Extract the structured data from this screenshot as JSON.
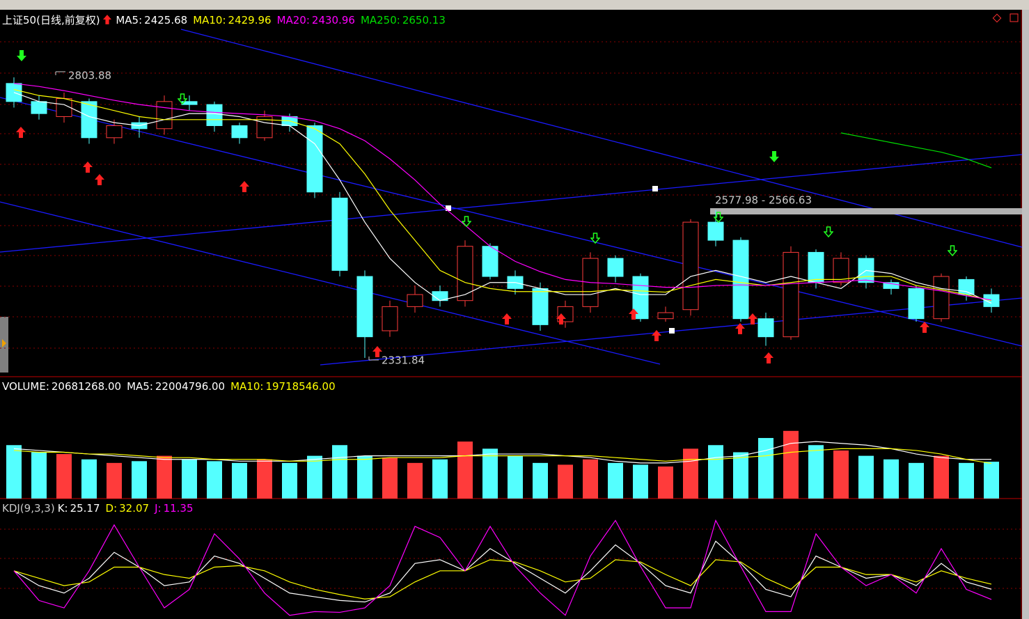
{
  "chart_data": [
    {
      "type": "candlestick",
      "title": "上证50(日线,前复权)",
      "ylim": [
        2305,
        2911
      ],
      "grid": true,
      "up_color": "#ff3b3b",
      "down_color": "#54ffff",
      "open": [
        2790,
        2760,
        2735,
        2760,
        2700,
        2725,
        2715,
        2760,
        2755,
        2720,
        2700,
        2735,
        2720,
        2600,
        2470,
        2380,
        2420,
        2445,
        2430,
        2520,
        2470,
        2450,
        2395,
        2420,
        2500,
        2470,
        2400,
        2415,
        2560,
        2530,
        2400,
        2370,
        2510,
        2460,
        2500,
        2460,
        2450,
        2400,
        2465,
        2440
      ],
      "high": [
        2800,
        2770,
        2775,
        2765,
        2730,
        2735,
        2770,
        2770,
        2760,
        2725,
        2745,
        2740,
        2725,
        2610,
        2480,
        2430,
        2455,
        2455,
        2530,
        2525,
        2480,
        2460,
        2430,
        2510,
        2505,
        2475,
        2420,
        2565,
        2580,
        2535,
        2410,
        2520,
        2515,
        2510,
        2505,
        2465,
        2455,
        2475,
        2470,
        2450
      ],
      "low": [
        2750,
        2730,
        2725,
        2690,
        2690,
        2700,
        2705,
        2745,
        2710,
        2690,
        2695,
        2710,
        2600,
        2470,
        2335,
        2370,
        2410,
        2420,
        2420,
        2465,
        2440,
        2380,
        2385,
        2410,
        2460,
        2395,
        2395,
        2405,
        2520,
        2395,
        2355,
        2365,
        2450,
        2455,
        2450,
        2440,
        2395,
        2395,
        2430,
        2410
      ],
      "close": [
        2760,
        2740,
        2765,
        2700,
        2720,
        2715,
        2760,
        2755,
        2720,
        2700,
        2735,
        2720,
        2610,
        2480,
        2370,
        2420,
        2440,
        2430,
        2520,
        2470,
        2450,
        2390,
        2420,
        2500,
        2470,
        2400,
        2410,
        2560,
        2530,
        2400,
        2370,
        2510,
        2460,
        2500,
        2460,
        2450,
        2400,
        2470,
        2440,
        2420
      ],
      "series": [
        {
          "name": "MA5:",
          "color": "#ffffff",
          "values": [
            2775,
            2760,
            2755,
            2735,
            2725,
            2720,
            2730,
            2740,
            2740,
            2735,
            2725,
            2720,
            2690,
            2630,
            2560,
            2500,
            2460,
            2430,
            2440,
            2460,
            2460,
            2450,
            2440,
            2440,
            2450,
            2440,
            2440,
            2470,
            2480,
            2470,
            2460,
            2470,
            2460,
            2450,
            2480,
            2475,
            2460,
            2450,
            2445,
            2425.68
          ]
        },
        {
          "name": "MA10:",
          "color": "#ffff00",
          "values": [
            2780,
            2770,
            2765,
            2755,
            2745,
            2735,
            2730,
            2730,
            2730,
            2730,
            2730,
            2728,
            2715,
            2690,
            2640,
            2580,
            2530,
            2480,
            2460,
            2450,
            2445,
            2445,
            2445,
            2445,
            2448,
            2446,
            2444,
            2455,
            2465,
            2460,
            2455,
            2460,
            2465,
            2465,
            2470,
            2470,
            2455,
            2448,
            2440,
            2429.96
          ]
        },
        {
          "name": "MA20:",
          "color": "#ff00ff",
          "values": [
            2790,
            2785,
            2778,
            2770,
            2762,
            2755,
            2750,
            2745,
            2742,
            2740,
            2738,
            2735,
            2728,
            2715,
            2695,
            2665,
            2630,
            2590,
            2555,
            2520,
            2495,
            2478,
            2465,
            2460,
            2458,
            2455,
            2452,
            2452,
            2455,
            2456,
            2455,
            2458,
            2460,
            2462,
            2464,
            2458,
            2452,
            2446,
            2438,
            2430.96
          ]
        },
        {
          "name": "MA250:",
          "color": "#00e000",
          "values": [
            null,
            null,
            null,
            null,
            null,
            null,
            null,
            null,
            null,
            null,
            null,
            null,
            null,
            null,
            null,
            null,
            null,
            null,
            null,
            null,
            null,
            null,
            null,
            null,
            null,
            null,
            null,
            null,
            null,
            null,
            null,
            null,
            null,
            2708,
            2700,
            2692,
            2684,
            2676,
            2665,
            2650.13
          ]
        }
      ],
      "high_label": 2803.88,
      "low_label": 2331.84,
      "range_label": "2577.98 - 2566.63"
    },
    {
      "type": "volume",
      "ylim": [
        0,
        61000000
      ],
      "series": [
        {
          "name": "VOLUME:",
          "color": "#ffffff",
          "last_label": "20681268.00",
          "values": [
            30000000,
            26000000,
            25000000,
            22000000,
            20000000,
            21000000,
            24000000,
            22000000,
            21000000,
            20000000,
            22000000,
            20000000,
            24000000,
            30000000,
            24000000,
            23000000,
            20000000,
            22000000,
            32000000,
            28000000,
            24000000,
            20000000,
            19000000,
            22000000,
            20000000,
            19000000,
            18000000,
            28000000,
            30000000,
            26000000,
            34000000,
            38000000,
            30000000,
            27000000,
            24000000,
            22000000,
            20000000,
            24000000,
            20000000,
            20681268
          ]
        },
        {
          "name": "MA5:",
          "color": "#ffffff",
          "last_label": "22004796.00",
          "values": [
            28000000,
            27000000,
            26000000,
            25000000,
            24000000,
            23000000,
            22000000,
            22000000,
            22000000,
            21000000,
            21000000,
            21000000,
            22000000,
            23000000,
            24000000,
            24000000,
            24000000,
            24000000,
            24000000,
            25000000,
            25000000,
            25000000,
            24000000,
            23000000,
            21000000,
            20000000,
            20000000,
            21000000,
            23000000,
            24000000,
            27000000,
            31000000,
            32000000,
            31000000,
            30000000,
            28000000,
            25000000,
            23000000,
            22000000,
            22004796
          ]
        },
        {
          "name": "MA10:",
          "color": "#ffff00",
          "last_label": "19718546.00",
          "values": [
            27000000,
            26000000,
            26000000,
            25000000,
            25000000,
            24000000,
            23000000,
            23000000,
            22000000,
            22000000,
            22000000,
            21000000,
            21000000,
            22000000,
            22000000,
            23000000,
            23000000,
            23000000,
            24000000,
            24000000,
            24000000,
            24000000,
            24000000,
            24000000,
            23000000,
            22000000,
            21000000,
            22000000,
            22000000,
            23000000,
            24000000,
            26000000,
            27000000,
            28000000,
            28000000,
            28000000,
            27000000,
            25000000,
            22000000,
            19718546
          ]
        }
      ]
    },
    {
      "type": "line",
      "title": "KDJ(9,3,3)",
      "ylim": [
        -15,
        125
      ],
      "series": [
        {
          "name": "K:",
          "color": "#ffffff",
          "values": [
            50,
            30,
            20,
            40,
            75,
            55,
            30,
            35,
            70,
            60,
            40,
            20,
            15,
            10,
            8,
            20,
            60,
            65,
            50,
            80,
            60,
            40,
            20,
            50,
            85,
            60,
            30,
            20,
            90,
            60,
            25,
            15,
            70,
            55,
            40,
            45,
            30,
            60,
            35,
            25.17
          ]
        },
        {
          "name": "D:",
          "color": "#ffff00",
          "values": [
            50,
            40,
            30,
            35,
            55,
            55,
            45,
            40,
            55,
            57,
            50,
            35,
            25,
            18,
            12,
            15,
            35,
            50,
            50,
            65,
            62,
            50,
            35,
            40,
            65,
            62,
            45,
            30,
            65,
            62,
            40,
            25,
            55,
            55,
            45,
            45,
            35,
            50,
            40,
            32.07
          ]
        },
        {
          "name": "J:",
          "color": "#ff00ff",
          "values": [
            50,
            10,
            0,
            50,
            112,
            55,
            0,
            25,
            100,
            66,
            20,
            -10,
            -5,
            -6,
            0,
            30,
            110,
            95,
            50,
            110,
            56,
            20,
            -10,
            70,
            118,
            56,
            0,
            0,
            118,
            56,
            -5,
            -5,
            100,
            55,
            30,
            45,
            20,
            80,
            25,
            11.35
          ]
        }
      ]
    }
  ]
}
